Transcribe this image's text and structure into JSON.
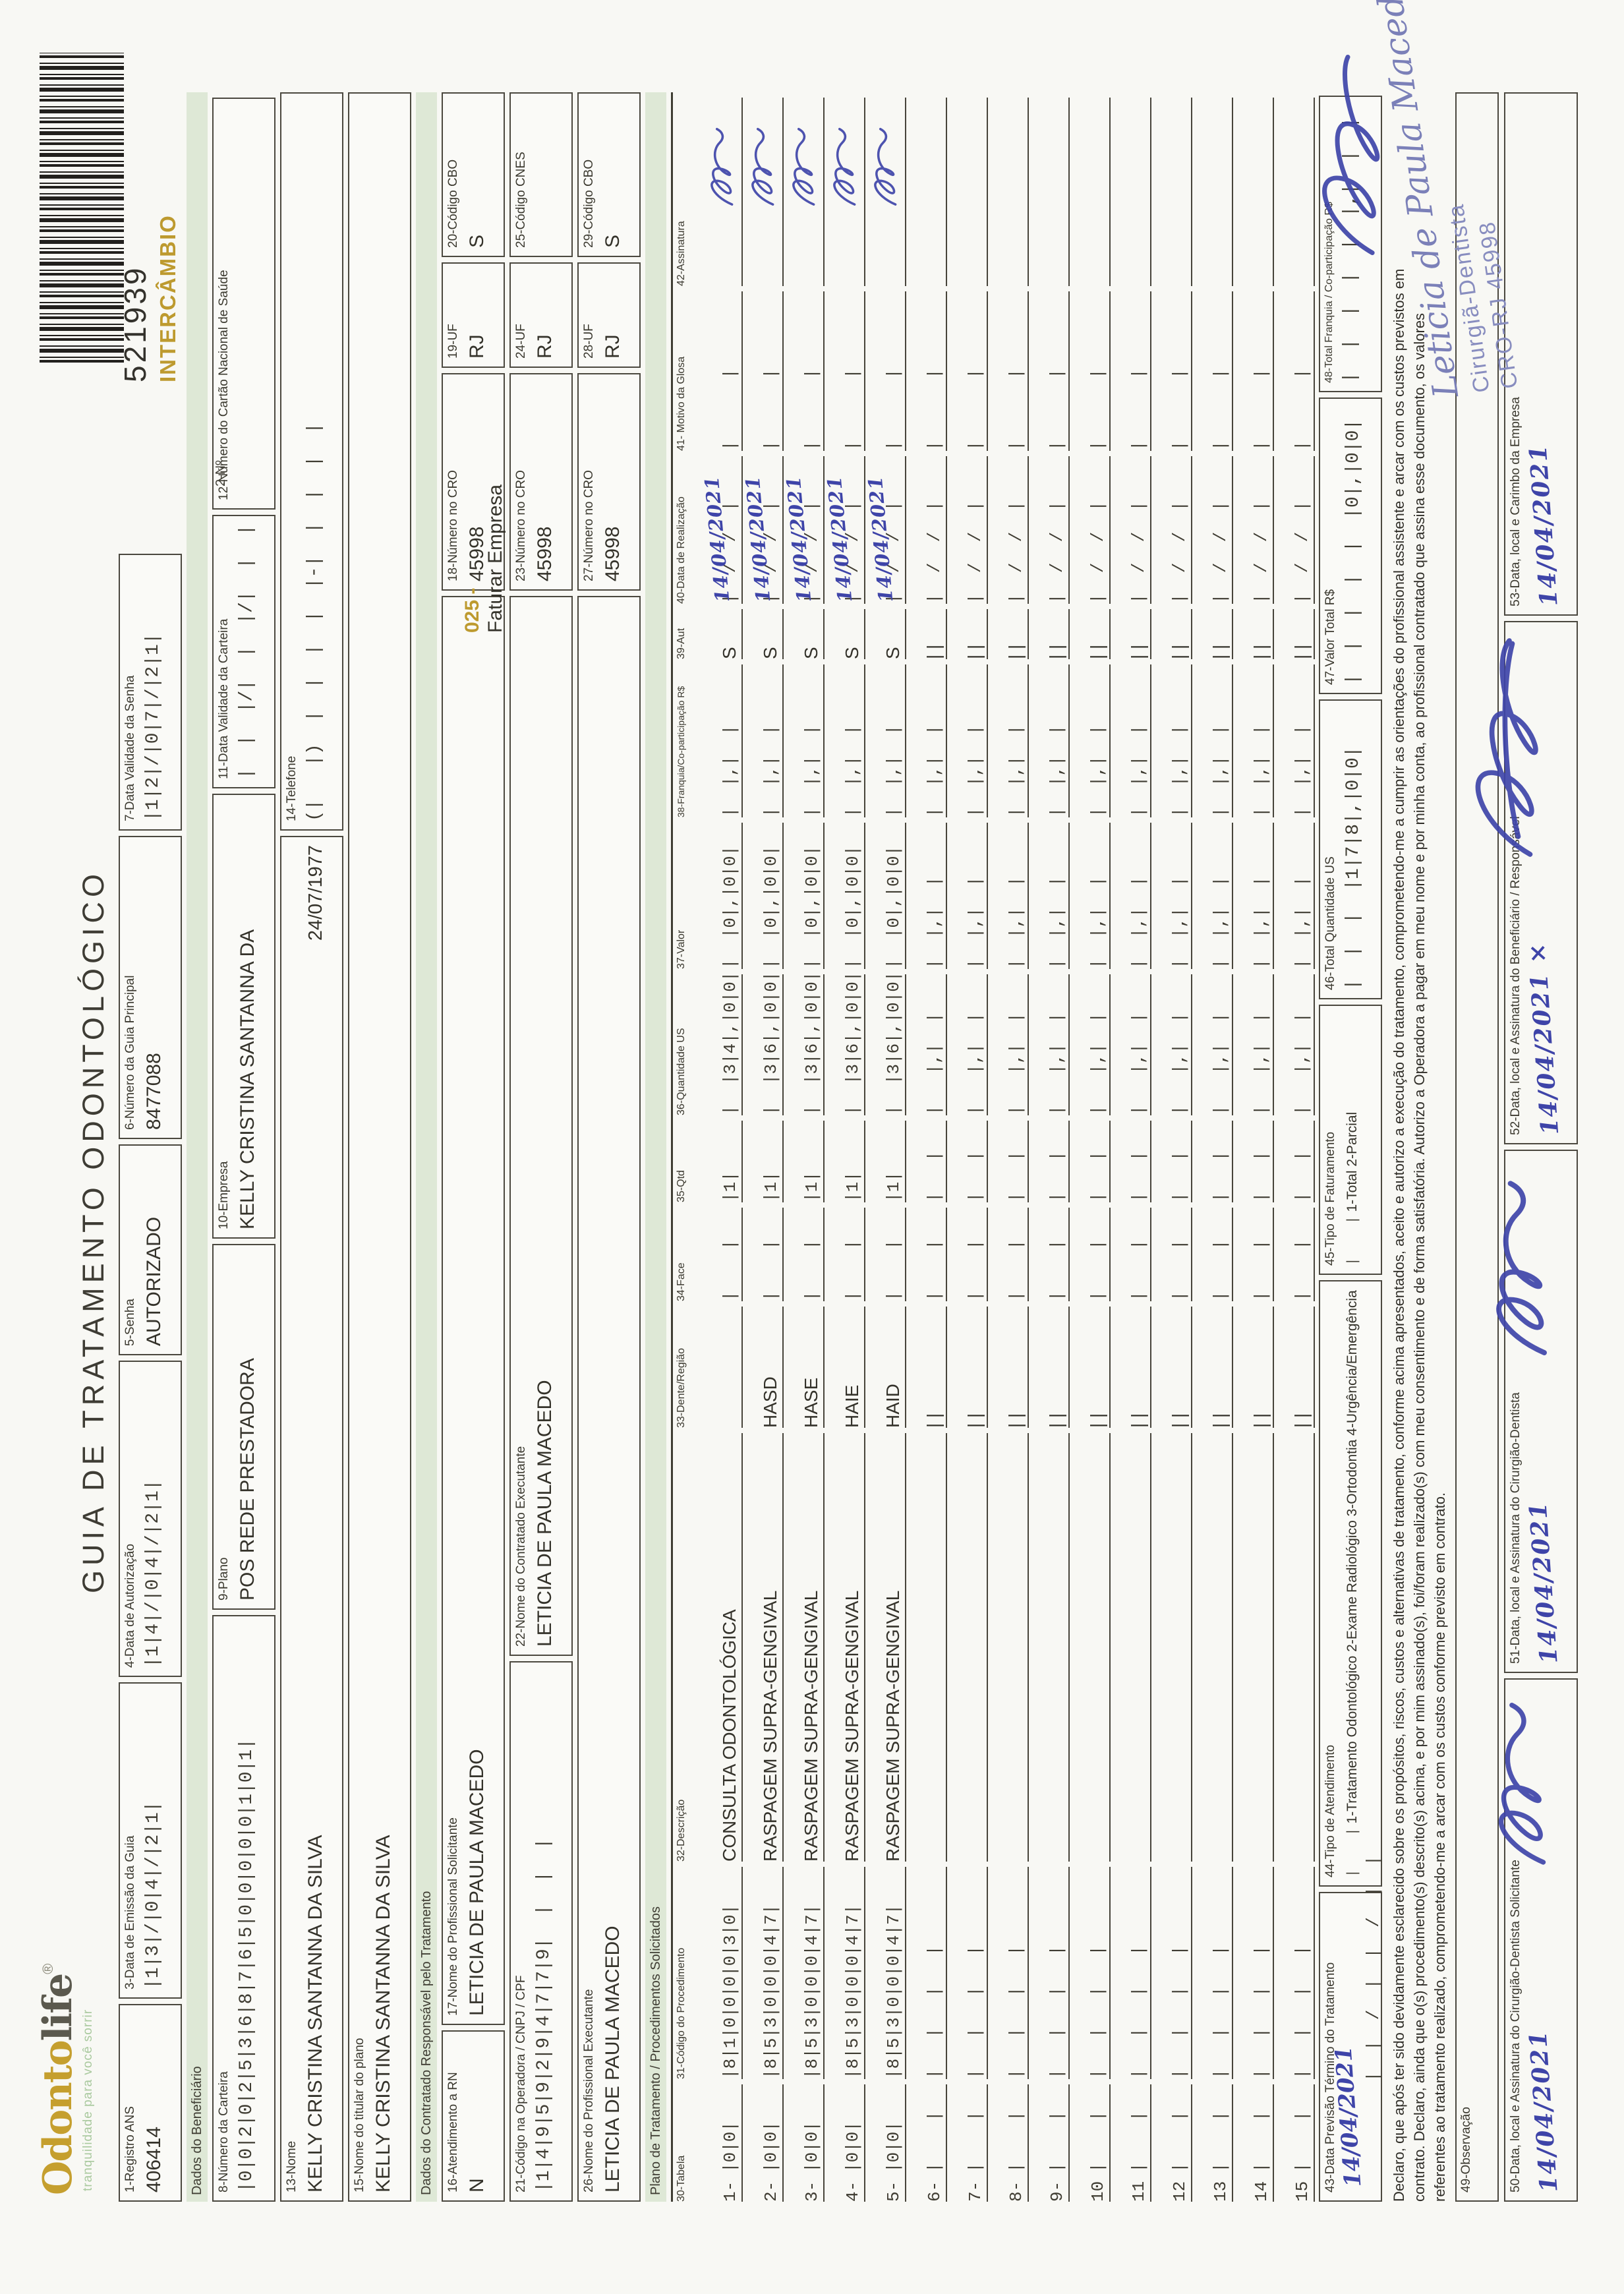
{
  "page": {
    "title": "GUIA DE TRATAMENTO ODONTOLÓGICO"
  },
  "logo": {
    "part1": "Odonto",
    "part2": "life",
    "reg": "®",
    "tagline": "tranquilidade para você sorrir"
  },
  "barcode": {
    "number": "521939",
    "tag": "INTERCÂMBIO",
    "no_label": "2-Nº"
  },
  "sections": {
    "beneficiario": "Dados do Beneficiário",
    "contratado": "Dados do Contratado Responsável pelo Tratamento",
    "plano": "Plano de Tratamento / Procedimentos Solicitados"
  },
  "colors": {
    "gold": "#bd9a2f",
    "band_green": "#dee8d6",
    "ink_blue": "#3e44a8",
    "stamp_blue": "#7b80b8"
  },
  "f": {
    "1": {
      "label": "1-Registro ANS",
      "value": "406414"
    },
    "3": {
      "label": "3-Data de Emissão da Guia",
      "value": "|1|3|/|0|4|/|2|1|"
    },
    "4": {
      "label": "4-Data de Autorização",
      "value": "|1|4|/|0|4|/|2|1|"
    },
    "5": {
      "label": "5-Senha",
      "value": "AUTORIZADO"
    },
    "6": {
      "label": "6-Número da Guia Principal",
      "value": "8477088"
    },
    "7": {
      "label": "7-Data Validade da Senha",
      "value": "|1|2|/|0|7|/|2|1|"
    },
    "8": {
      "label": "8-Número da Carteira",
      "value": "|0|0|2|0|2|5|3|6|8|7|6|5|0|0|0|0|0|1|0|1|"
    },
    "9": {
      "label": "9-Plano",
      "value": "POS REDE PRESTADORA"
    },
    "10": {
      "label": "10-Empresa",
      "value": "KELLY CRISTINA SANTANNA DA"
    },
    "11": {
      "label": "11-Data Validade da Carteira",
      "value": "|  |  |/|  |  |/|  |  |"
    },
    "12": {
      "label": "12-Número do Cartão Nacional de Saúde",
      "value": ""
    },
    "13": {
      "label": "13-Nome",
      "value": "KELLY CRISTINA SANTANNA DA SILVA",
      "birth": "24/07/1977"
    },
    "14": {
      "label": "14-Telefone",
      "value": "(|   |)  |  |  |  |  |-|  |  |  |  |"
    },
    "15": {
      "label": "15-Nome do titular do plano",
      "value": "KELLY CRISTINA SANTANNA DA SILVA"
    },
    "16": {
      "label": "16-Atendimento a RN",
      "value": "N"
    },
    "17": {
      "label": "17-Nome do Profissional Solicitante",
      "value": "LETICIA DE PAULA MACEDO"
    },
    "18": {
      "label": "18-Número no CRO",
      "value": "45998"
    },
    "19": {
      "label": "19-UF",
      "value": "RJ"
    },
    "20": {
      "label": "20-Código CBO",
      "value": "S"
    },
    "21": {
      "label": "21-Código na Operadora / CNPJ / CPF",
      "value": "|1|4|9|5|9|2|9|4|7|7|9|  |  |  |"
    },
    "22": {
      "label": "22-Nome do Contratado Executante",
      "value": "LETICIA DE PAULA MACEDO"
    },
    "23": {
      "label": "23-Número no CRO",
      "value": "45998"
    },
    "24": {
      "label": "24-UF",
      "value": "RJ"
    },
    "25": {
      "label": "25-Código CNES",
      "value": ""
    },
    "26": {
      "label": "26-Nome do Profissional Executante",
      "value": "LETICIA DE PAULA MACEDO"
    },
    "27": {
      "label": "27-Número no CRO",
      "value": "45998"
    },
    "28": {
      "label": "28-UF",
      "value": "RJ"
    },
    "29": {
      "label": "29-Código CBO",
      "value": "S"
    },
    "43": {
      "label": "43-Data Previsão Término do Tratamento",
      "ticks": "|  |  /  |  |  /  |  |",
      "hand": "14/04/2021"
    },
    "44": {
      "label": "44-Tipo de Atendimento",
      "box": "|    |",
      "options": "1-Tratamento Odontológico  2-Exame Radiológico  3-Ortodontia  4-Urgência/Emergência"
    },
    "45": {
      "label": "45-Tipo de Faturamento",
      "box": "|    |",
      "options": "1-Total  2-Parcial"
    },
    "46": {
      "label": "46-Total Quantidade US",
      "value": "|  |  |  |1|7|8|,|0|0|"
    },
    "47": {
      "label": "47-Valor Total R$",
      "value": "|  |  |  |  |  |0|,|0|0|"
    },
    "48": {
      "label": "48-Total Franquia / Co-participação R$",
      "value": "|  |  |  |  |  |,|  |  |"
    },
    "49": {
      "label": "49-Observação"
    },
    "50": {
      "label": "50-Data, local e Assinatura do Cirurgião-Dentista Solicitante",
      "hand": "14/04/2021"
    },
    "51": {
      "label": "51-Data, local e Assinatura do Cirurgião-Dentista",
      "hand": "14/04/2021"
    },
    "52": {
      "label": "52-Data, local e Assinatura do Beneficiário / Responsável",
      "hand": "14/04/2021 ×"
    },
    "53": {
      "label": "53-Data, local e Carimbo da Empresa",
      "hand": "14/04/2021"
    }
  },
  "note": {
    "code": "025 -",
    "text": "Faturar Empresa"
  },
  "declaration": {
    "line1": "Declaro, que após ter sido devidamente esclarecido sobre os propósitos, riscos, custos e alternativas de tratamento, conforme acima apresentados, aceito e autorizo a execução do tratamento, comprometendo-me a cumprir as orientações do profissional assistente e arcar com os custos previstos em",
    "line2": "contrato. Declaro, ainda que o(s) procedimento(s) descrito(s) acima, e por mim assinado(s), foi/foram realizado(s) com meu consentimento e de forma satisfatória. Autorizo a Operadora a pagar em meu nome e por minha conta, ao profissional contratado que assina esse documento, os valores",
    "line3": "referentes ao tratamento realizado, comprometendo-me a arcar com os custos conforme previsto em contrato."
  },
  "table": {
    "headers": [
      "30-Tabela",
      "31-Código do Procedimento",
      "32-Descrição",
      "33-Dente/Região",
      "34-Face",
      "35-Qtd",
      "36-Quantidade US",
      "37-Valor",
      "38-Franquia/Co-participação R$",
      "39-Aut",
      "40-Data de Realização",
      "41- Motivo da Glosa",
      "42-Assinatura"
    ],
    "rows": [
      {
        "num": "1-",
        "tabela": "|0|0|",
        "codigo": "|8|1|0|0|0|0|3|0|",
        "desc": "CONSULTA ODONTOLÓGICA",
        "dente": "",
        "face": "|    |",
        "qtd": "|1|",
        "us": "|  |3|4|,|0|0|",
        "valor": "|  |0|,|0|0|",
        "franquia": "|  |,|  |",
        "aut": "S",
        "data_ticks": "|  /  /  |",
        "hand": "14/04/2021",
        "motivo": "|      |",
        "sig": true
      },
      {
        "num": "2-",
        "tabela": "|0|0|",
        "codigo": "|8|5|3|0|0|0|4|7|",
        "desc": "RASPAGEM SUPRA-GENGIVAL",
        "dente": "HASD",
        "face": "|    |",
        "qtd": "|1|",
        "us": "|  |3|6|,|0|0|",
        "valor": "|  |0|,|0|0|",
        "franquia": "|  |,|  |",
        "aut": "S",
        "data_ticks": "|  /  /  |",
        "hand": "14/04/2021",
        "motivo": "|      |",
        "sig": true
      },
      {
        "num": "3-",
        "tabela": "|0|0|",
        "codigo": "|8|5|3|0|0|0|4|7|",
        "desc": "RASPAGEM SUPRA-GENGIVAL",
        "dente": "HASE",
        "face": "|    |",
        "qtd": "|1|",
        "us": "|  |3|6|,|0|0|",
        "valor": "|  |0|,|0|0|",
        "franquia": "|  |,|  |",
        "aut": "S",
        "data_ticks": "|  /  /  |",
        "hand": "14/04/2021",
        "motivo": "|      |",
        "sig": true
      },
      {
        "num": "4-",
        "tabela": "|0|0|",
        "codigo": "|8|5|3|0|0|0|4|7|",
        "desc": "RASPAGEM SUPRA-GENGIVAL",
        "dente": "HAIE",
        "face": "|    |",
        "qtd": "|1|",
        "us": "|  |3|6|,|0|0|",
        "valor": "|  |0|,|0|0|",
        "franquia": "|  |,|  |",
        "aut": "S",
        "data_ticks": "|  /  /  |",
        "hand": "14/04/2021",
        "motivo": "|      |",
        "sig": true
      },
      {
        "num": "5-",
        "tabela": "|0|0|",
        "codigo": "|8|5|3|0|0|0|4|7|",
        "desc": "RASPAGEM SUPRA-GENGIVAL",
        "dente": "HAID",
        "face": "|    |",
        "qtd": "|1|",
        "us": "|  |3|6|,|0|0|",
        "valor": "|  |0|,|0|0|",
        "franquia": "|  |,|  |",
        "aut": "S",
        "data_ticks": "|  /  /  |",
        "hand": "14/04/2021",
        "motivo": "|      |",
        "sig": true
      },
      {
        "num": "6-",
        "tabela": "|    |",
        "codigo": "|   |   |   |",
        "desc": "",
        "dente": "|    |",
        "face": "|    |",
        "qtd": "|   |",
        "us": "|   |,|  |",
        "valor": "|  |,|  |",
        "franquia": "|  |,|  |",
        "aut": "|  |",
        "data_ticks": "|  /  /  |",
        "hand": "",
        "motivo": "|      |",
        "sig": false
      },
      {
        "num": "7-",
        "tabela": "|    |",
        "codigo": "|   |   |   |",
        "desc": "",
        "dente": "|    |",
        "face": "|    |",
        "qtd": "|   |",
        "us": "|   |,|  |",
        "valor": "|  |,|  |",
        "franquia": "|  |,|  |",
        "aut": "|  |",
        "data_ticks": "|  /  /  |",
        "hand": "",
        "motivo": "|      |",
        "sig": false
      },
      {
        "num": "8-",
        "tabela": "|    |",
        "codigo": "|   |   |   |",
        "desc": "",
        "dente": "|    |",
        "face": "|    |",
        "qtd": "|   |",
        "us": "|   |,|  |",
        "valor": "|  |,|  |",
        "franquia": "|  |,|  |",
        "aut": "|  |",
        "data_ticks": "|  /  /  |",
        "hand": "",
        "motivo": "|      |",
        "sig": false
      },
      {
        "num": "9-",
        "tabela": "|    |",
        "codigo": "|   |   |   |",
        "desc": "",
        "dente": "|    |",
        "face": "|    |",
        "qtd": "|   |",
        "us": "|   |,|  |",
        "valor": "|  |,|  |",
        "franquia": "|  |,|  |",
        "aut": "|  |",
        "data_ticks": "|  /  /  |",
        "hand": "",
        "motivo": "|      |",
        "sig": false
      },
      {
        "num": "10",
        "tabela": "|    |",
        "codigo": "|   |   |   |",
        "desc": "",
        "dente": "|    |",
        "face": "|    |",
        "qtd": "|   |",
        "us": "|   |,|  |",
        "valor": "|  |,|  |",
        "franquia": "|  |,|  |",
        "aut": "|  |",
        "data_ticks": "|  /  /  |",
        "hand": "",
        "motivo": "|      |",
        "sig": false
      },
      {
        "num": "11",
        "tabela": "|    |",
        "codigo": "|   |   |   |",
        "desc": "",
        "dente": "|    |",
        "face": "|    |",
        "qtd": "|   |",
        "us": "|   |,|  |",
        "valor": "|  |,|  |",
        "franquia": "|  |,|  |",
        "aut": "|  |",
        "data_ticks": "|  /  /  |",
        "hand": "",
        "motivo": "|      |",
        "sig": false
      },
      {
        "num": "12",
        "tabela": "|    |",
        "codigo": "|   |   |   |",
        "desc": "",
        "dente": "|    |",
        "face": "|    |",
        "qtd": "|   |",
        "us": "|   |,|  |",
        "valor": "|  |,|  |",
        "franquia": "|  |,|  |",
        "aut": "|  |",
        "data_ticks": "|  /  /  |",
        "hand": "",
        "motivo": "|      |",
        "sig": false
      },
      {
        "num": "13",
        "tabela": "|    |",
        "codigo": "|   |   |   |",
        "desc": "",
        "dente": "|    |",
        "face": "|    |",
        "qtd": "|   |",
        "us": "|   |,|  |",
        "valor": "|  |,|  |",
        "franquia": "|  |,|  |",
        "aut": "|  |",
        "data_ticks": "|  /  /  |",
        "hand": "",
        "motivo": "|      |",
        "sig": false
      },
      {
        "num": "14",
        "tabela": "|    |",
        "codigo": "|   |   |   |",
        "desc": "",
        "dente": "|    |",
        "face": "|    |",
        "qtd": "|   |",
        "us": "|   |,|  |",
        "valor": "|  |,|  |",
        "franquia": "|  |,|  |",
        "aut": "|  |",
        "data_ticks": "|  /  /  |",
        "hand": "",
        "motivo": "|      |",
        "sig": false
      },
      {
        "num": "15",
        "tabela": "|    |",
        "codigo": "|   |   |   |",
        "desc": "",
        "dente": "|    |",
        "face": "|    |",
        "qtd": "|   |",
        "us": "|   |,|  |",
        "valor": "|  |,|  |",
        "franquia": "|  |,|  |",
        "aut": "|  |",
        "data_ticks": "|  /  /  |",
        "hand": "",
        "motivo": "|      |",
        "sig": false
      }
    ]
  },
  "stamp": {
    "name": "Leticia de Paula Macedo",
    "role": "Cirurgiã-Dentista",
    "cro": "CRO-RJ 45998"
  }
}
